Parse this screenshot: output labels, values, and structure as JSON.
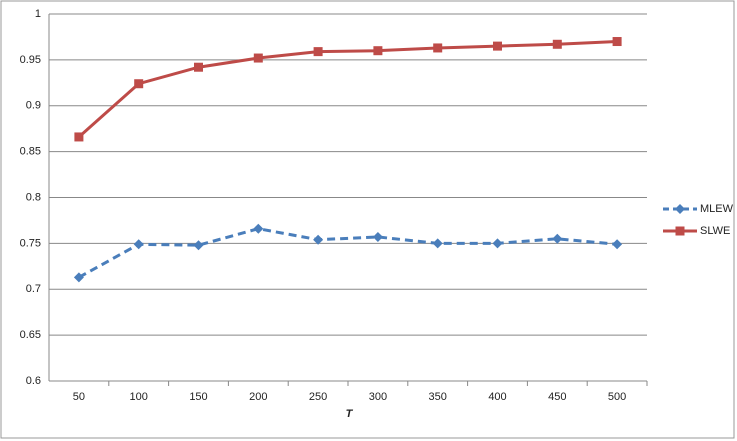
{
  "chart_data": {
    "type": "line",
    "x_label": "T",
    "categories": [
      "50",
      "100",
      "150",
      "200",
      "250",
      "300",
      "350",
      "400",
      "450",
      "500"
    ],
    "series": [
      {
        "name": "MLEW",
        "color": "#4a7ebb",
        "dash": true,
        "marker": "diamond",
        "values": [
          0.713,
          0.749,
          0.748,
          0.766,
          0.754,
          0.757,
          0.75,
          0.75,
          0.755,
          0.749
        ]
      },
      {
        "name": "SLWE",
        "color": "#be4b48",
        "dash": false,
        "marker": "square",
        "values": [
          0.866,
          0.924,
          0.942,
          0.952,
          0.959,
          0.96,
          0.963,
          0.965,
          0.967,
          0.97
        ]
      }
    ],
    "ylim": [
      0.6,
      1
    ],
    "yticks": [
      0.6,
      0.65,
      0.7,
      0.75,
      0.8,
      0.85,
      0.9,
      0.95,
      1
    ],
    "grid": true,
    "legend": "right"
  }
}
